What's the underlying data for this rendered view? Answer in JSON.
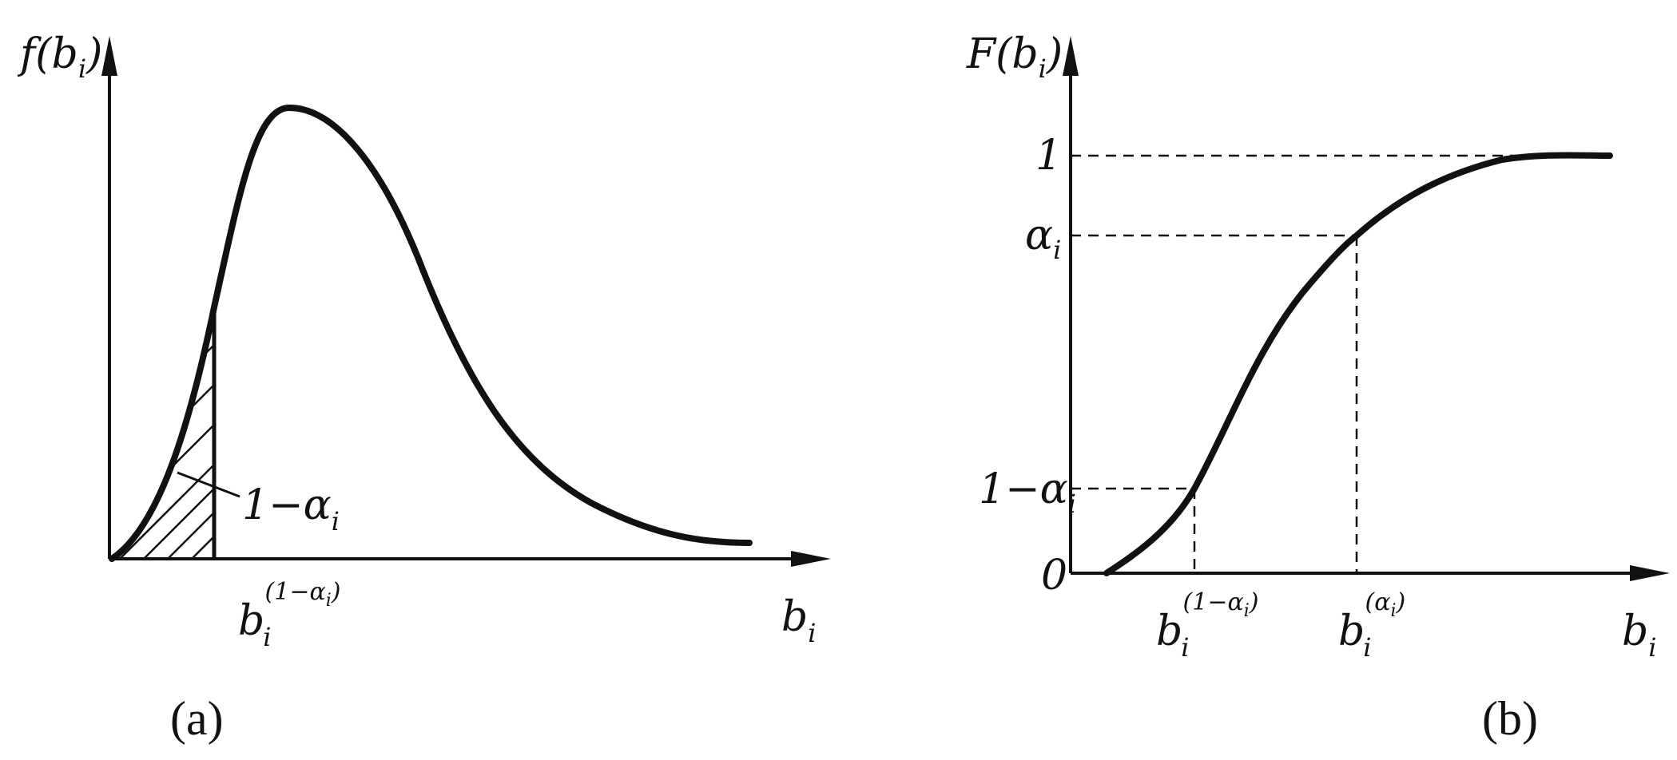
{
  "panel_a": {
    "y_axis_label": "f(b",
    "y_axis_sub": "i",
    "y_axis_close": ")",
    "x_axis_label": "b",
    "x_axis_sub": "i",
    "tick_label_base": "b",
    "tick_label_sub": "i",
    "tick_label_sup": "(1−α",
    "tick_label_sup_sub": "i",
    "tick_label_sup_close": ")",
    "area_label": "1−α",
    "area_label_sub": "i",
    "caption": "(a)"
  },
  "panel_b": {
    "y_axis_label": "F(b",
    "y_axis_sub": "i",
    "y_axis_close": ")",
    "x_axis_label": "b",
    "x_axis_sub": "i",
    "y_tick_one": "1",
    "y_tick_alpha": "α",
    "y_tick_alpha_sub": "i",
    "y_tick_one_minus_alpha": "1−α",
    "y_tick_one_minus_alpha_sub": "i",
    "y_tick_zero": "0",
    "x_tick_low_base": "b",
    "x_tick_low_sub": "i",
    "x_tick_low_sup": "(1−α",
    "x_tick_low_sup_sub": "i",
    "x_tick_low_sup_close": ")",
    "x_tick_high_base": "b",
    "x_tick_high_sub": "i",
    "x_tick_high_sup": "(α",
    "x_tick_high_sup_sub": "i",
    "x_tick_high_sup_close": ")",
    "caption": "(b)"
  }
}
